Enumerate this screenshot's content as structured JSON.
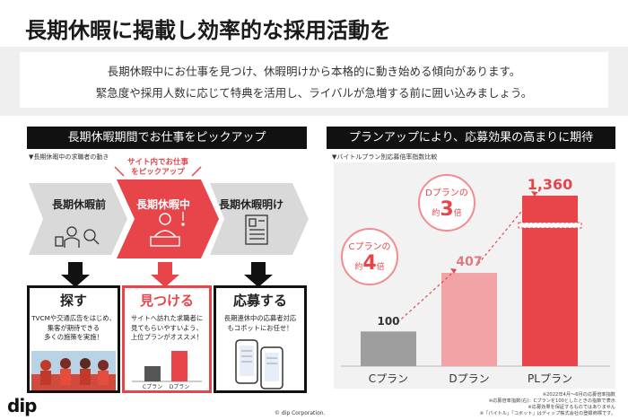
{
  "header": {
    "title": "長期休暇に掲載し効率的な採用活動を",
    "intro_line1": "長期休暇中にお仕事を見つけ、休暇明けから本格的に動き始める傾向があります。",
    "intro_line2": "緊急度や採用人数に応じて特典を活用し、ライバルが急増する前に囲い込みましょう。"
  },
  "left": {
    "heading": "長期休暇期間でお仕事をピックアップ",
    "caption": "▼長期休暇中の求職者の動き",
    "callout_line1": "サイト内でお仕事",
    "callout_line2": "をピックアップ",
    "phases": [
      "長期休暇前",
      "長期休暇中",
      "長期休暇明け"
    ],
    "stages": [
      {
        "title": "探す",
        "desc1": "TVCMや交通広告をはじめ、",
        "desc2": "集客が期待できる",
        "desc3": "多くの施策を実施！"
      },
      {
        "title": "見つける",
        "desc1": "サイトへ訪れた求職者に",
        "desc2": "見てもらいやすいよう、",
        "desc3": "上位プランがオススメ！"
      },
      {
        "title": "応募する",
        "desc1": "長期連休中の応募者対応",
        "desc2": "もコボットにお任せ！",
        "desc3": ""
      }
    ],
    "mini_chart": {
      "categories": [
        "Cプラン",
        "Dプラン"
      ],
      "values": [
        1,
        2
      ]
    }
  },
  "right": {
    "heading": "プランアップにより、応募効果の高まりに期待",
    "caption": "▼バイトルプラン別応募倍率指数比較",
    "chart_data": {
      "type": "bar",
      "categories": [
        "Cプラン",
        "Dプラン",
        "PLプラン"
      ],
      "values": [
        100,
        407,
        1360
      ],
      "value_labels": [
        "100",
        "407",
        "1,360"
      ],
      "title": "",
      "xlabel": "",
      "ylabel": "",
      "colors": [
        "#9e9e9e",
        "#f2a3a6",
        "#e8454b"
      ]
    },
    "bubble_c": {
      "line1": "Cプランの",
      "prefix": "約",
      "number": "4",
      "suffix": "倍"
    },
    "bubble_d": {
      "line1": "Dプランの",
      "prefix": "約",
      "number": "3",
      "suffix": "倍"
    }
  },
  "footer": {
    "logo": "dip",
    "copyright": "© dip Corporation.",
    "note1": "※2022年4月〜6月の応募倍率指数",
    "note2": "※応募倍率指数(右)：Cプランを100としたときの指数で表示",
    "note3": "※応募効果を保証するものではありません",
    "note4": "※「バイトル」「コボット」はディップ株式会社の登録商標です。"
  }
}
